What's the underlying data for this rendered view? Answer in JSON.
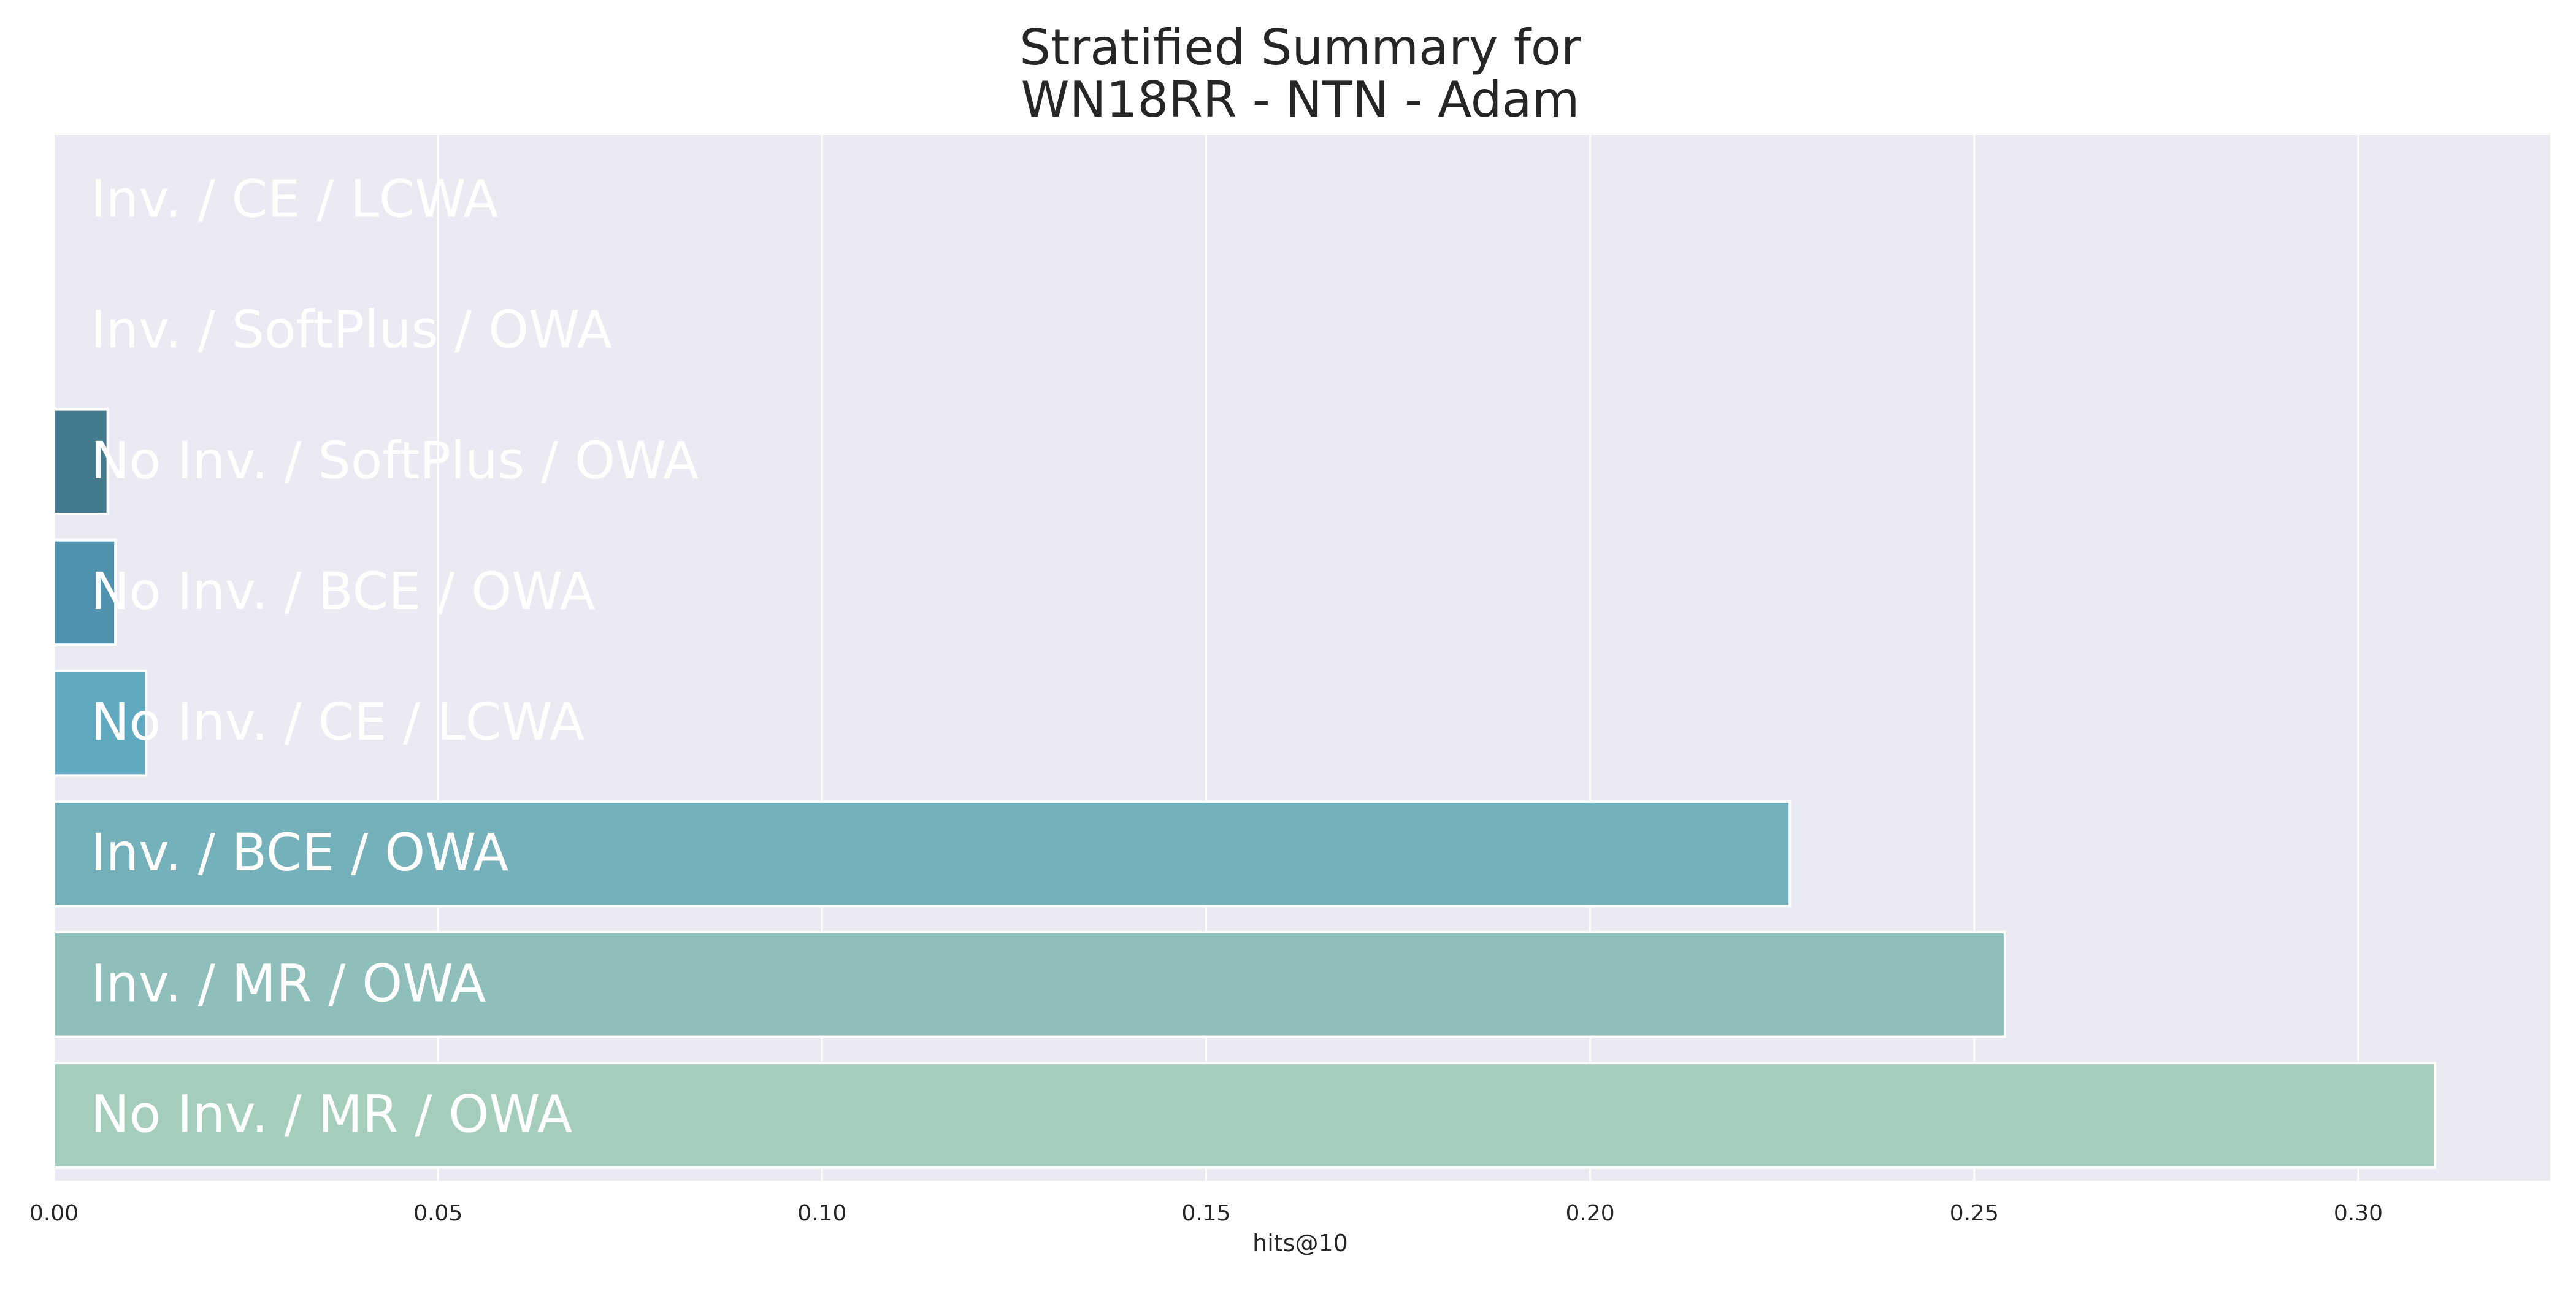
{
  "chart_data": {
    "type": "bar",
    "orientation": "horizontal",
    "title_lines": [
      "Stratified Summary for",
      "WN18RR - NTN - Adam"
    ],
    "xlabel": "hits@10",
    "ylabel": "",
    "xlim": [
      0,
      0.325
    ],
    "xticks": [
      0.0,
      0.05,
      0.1,
      0.15,
      0.2,
      0.25,
      0.3
    ],
    "xtick_labels": [
      "0.00",
      "0.05",
      "0.10",
      "0.15",
      "0.20",
      "0.25",
      "0.30"
    ],
    "grid": true,
    "background": "#eaeaf2",
    "grid_color": "#ffffff",
    "categories": [
      "Inv. / CE / LCWA",
      "Inv. / SoftPlus / OWA",
      "No Inv. / SoftPlus / OWA",
      "No Inv. / BCE / OWA",
      "No Inv. / CE / LCWA",
      "Inv. / BCE / OWA",
      "Inv. / MR / OWA",
      "No Inv. / MR / OWA"
    ],
    "values": [
      0.0,
      0.0,
      0.007,
      0.008,
      0.012,
      0.226,
      0.254,
      0.31
    ],
    "colors": [
      "#2d2f4a",
      "#35506b",
      "#457b8e",
      "#4f93ae",
      "#60a9c1",
      "#75b1ba",
      "#8ebfba",
      "#a4cebb"
    ]
  }
}
